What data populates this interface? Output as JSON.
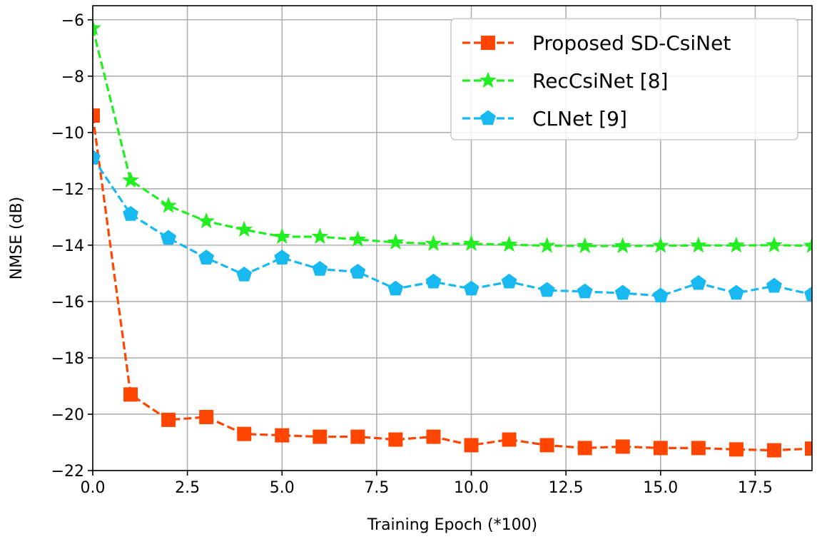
{
  "chart_data": {
    "type": "line",
    "title": "",
    "xlabel": "Training Epoch (*100)",
    "ylabel": "NMSE (dB)",
    "xlim": [
      0,
      19
    ],
    "ylim": [
      -22,
      -5.5
    ],
    "xticks": [
      0.0,
      2.5,
      5.0,
      7.5,
      10.0,
      12.5,
      15.0,
      17.5
    ],
    "xtick_labels": [
      "0.0",
      "2.5",
      "5.0",
      "7.5",
      "10.0",
      "12.5",
      "15.0",
      "17.5"
    ],
    "yticks": [
      -22,
      -20,
      -18,
      -16,
      -14,
      -12,
      -10,
      -8,
      -6
    ],
    "ytick_labels": [
      "−22",
      "−20",
      "−18",
      "−16",
      "−14",
      "−12",
      "−10",
      "−8",
      "−6"
    ],
    "grid": true,
    "legend_position": "top-right",
    "x": [
      0,
      1,
      2,
      3,
      4,
      5,
      6,
      7,
      8,
      9,
      10,
      11,
      12,
      13,
      14,
      15,
      16,
      17,
      18,
      19
    ],
    "series": [
      {
        "name": "Proposed SD-CsiNet",
        "color": "#ff4500",
        "marker": "square",
        "values": [
          -9.4,
          -19.3,
          -20.2,
          -20.1,
          -20.7,
          -20.75,
          -20.8,
          -20.8,
          -20.9,
          -20.8,
          -21.1,
          -20.9,
          -21.1,
          -21.2,
          -21.15,
          -21.2,
          -21.2,
          -21.25,
          -21.28,
          -21.22
        ]
      },
      {
        "name": "RecCsiNet [8]",
        "color": "#22ee22",
        "marker": "star",
        "values": [
          -6.3,
          -11.7,
          -12.6,
          -13.15,
          -13.45,
          -13.7,
          -13.7,
          -13.8,
          -13.9,
          -13.95,
          -13.95,
          -13.98,
          -14.02,
          -14.03,
          -14.03,
          -14.02,
          -14.01,
          -14.01,
          -14.0,
          -14.02
        ]
      },
      {
        "name": "CLNet [9]",
        "color": "#18b8f0",
        "marker": "pentagon",
        "values": [
          -10.9,
          -12.9,
          -13.75,
          -14.45,
          -15.05,
          -14.45,
          -14.85,
          -14.95,
          -15.55,
          -15.3,
          -15.55,
          -15.3,
          -15.6,
          -15.65,
          -15.7,
          -15.8,
          -15.35,
          -15.7,
          -15.45,
          -15.75
        ]
      }
    ]
  }
}
